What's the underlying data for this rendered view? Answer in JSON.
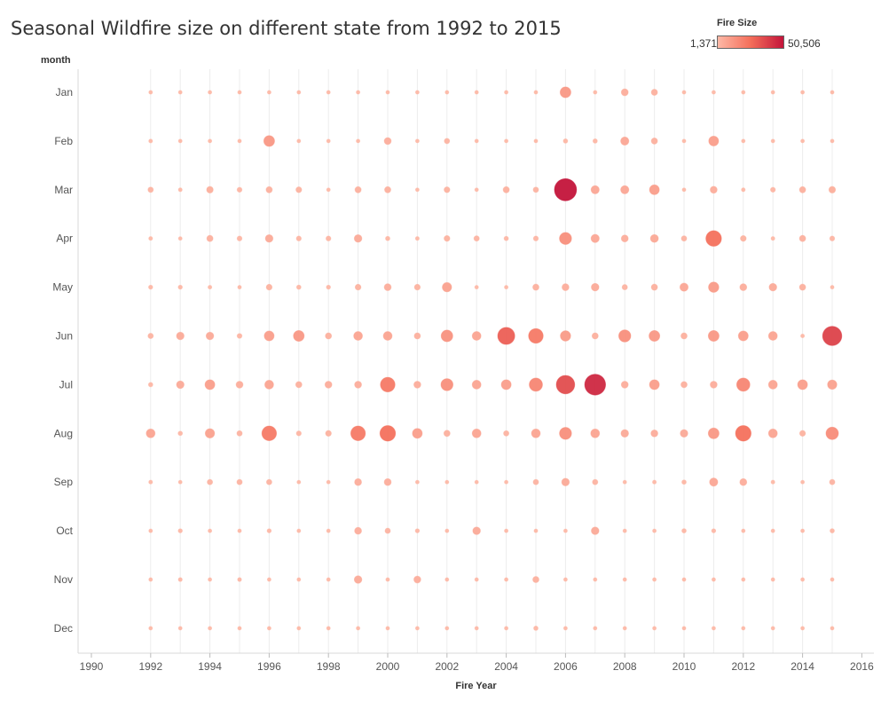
{
  "chart_data": {
    "type": "scatter",
    "title": "Seasonal Wildfire size on different state from 1992 to 2015",
    "xlabel": "Fire Year",
    "ylabel": "month",
    "legend": {
      "title": "Fire Size",
      "min_label": "1,371",
      "max_label": "50,506",
      "min": 1371,
      "max": 50506,
      "placement": "top-right"
    },
    "xlim": [
      1989.6,
      2017
    ],
    "x_ticks": [
      1990,
      1992,
      1994,
      1996,
      1998,
      2000,
      2002,
      2004,
      2006,
      2008,
      2010,
      2012,
      2014,
      2016
    ],
    "years": [
      1992,
      1993,
      1994,
      1995,
      1996,
      1997,
      1998,
      1999,
      2000,
      2001,
      2002,
      2003,
      2004,
      2005,
      2006,
      2007,
      2008,
      2009,
      2010,
      2011,
      2012,
      2013,
      2014,
      2015
    ],
    "months": [
      "Jan",
      "Feb",
      "Mar",
      "Apr",
      "May",
      "Jun",
      "Jul",
      "Aug",
      "Sep",
      "Oct",
      "Nov",
      "Dec"
    ],
    "grid": "vertical",
    "series": [
      {
        "month": "Jan",
        "values": [
          1400,
          1400,
          1400,
          1400,
          1400,
          1400,
          1400,
          1400,
          1400,
          1400,
          1400,
          1400,
          1400,
          1400,
          12000,
          1400,
          5000,
          4000,
          1400,
          1400,
          1400,
          1400,
          1400,
          1400
        ]
      },
      {
        "month": "Feb",
        "values": [
          1500,
          1400,
          1400,
          1400,
          12000,
          1400,
          1400,
          1400,
          5000,
          1400,
          3000,
          1400,
          1400,
          1400,
          2000,
          2000,
          7000,
          4000,
          1400,
          10000,
          1400,
          1400,
          1400,
          1400
        ]
      },
      {
        "month": "Mar",
        "values": [
          3000,
          1500,
          4500,
          2500,
          4000,
          3500,
          1400,
          4000,
          4000,
          1400,
          3500,
          1400,
          4000,
          3000,
          50506,
          7000,
          7000,
          10000,
          1400,
          5000,
          1500,
          2500,
          4000,
          4500
        ]
      },
      {
        "month": "Apr",
        "values": [
          1500,
          1400,
          4000,
          2500,
          6000,
          2500,
          2500,
          6000,
          2000,
          1500,
          3500,
          3000,
          2000,
          2500,
          15000,
          7000,
          5000,
          6500,
          3000,
          25000,
          3500,
          1500,
          4000,
          2500
        ]
      },
      {
        "month": "May",
        "values": [
          1800,
          1800,
          1500,
          1400,
          3500,
          2000,
          1800,
          3500,
          5000,
          3500,
          9000,
          1400,
          1400,
          4000,
          5000,
          6000,
          3000,
          4000,
          7000,
          11000,
          5000,
          6000,
          4000,
          1400
        ]
      },
      {
        "month": "Jun",
        "values": [
          3000,
          6000,
          6000,
          2500,
          10000,
          12000,
          4000,
          8000,
          8000,
          4000,
          14000,
          8000,
          30000,
          22000,
          11000,
          4000,
          15000,
          12000,
          4000,
          12000,
          10000,
          8000,
          1500,
          38000
        ]
      },
      {
        "month": "Jul",
        "values": [
          2000,
          6000,
          10000,
          5000,
          8000,
          4000,
          5000,
          5000,
          22000,
          5000,
          15000,
          8000,
          10000,
          18000,
          35000,
          45000,
          5000,
          10000,
          4000,
          5000,
          18000,
          8000,
          10000,
          9000
        ]
      },
      {
        "month": "Aug",
        "values": [
          8000,
          2000,
          9000,
          3000,
          22000,
          2500,
          3500,
          22000,
          25000,
          10000,
          4000,
          8000,
          3000,
          8000,
          15000,
          8000,
          6000,
          5000,
          6000,
          12000,
          25000,
          8000,
          3500,
          16000
        ]
      },
      {
        "month": "Sep",
        "values": [
          1500,
          1400,
          3000,
          3000,
          3000,
          1400,
          1400,
          5000,
          5000,
          1400,
          1400,
          1400,
          1400,
          3000,
          6000,
          3000,
          1400,
          1500,
          2000,
          7000,
          5000,
          1500,
          1400,
          3000
        ]
      },
      {
        "month": "Oct",
        "values": [
          1400,
          1800,
          1400,
          1400,
          1800,
          1400,
          1400,
          5000,
          3000,
          1800,
          1400,
          6000,
          1400,
          1400,
          1400,
          6000,
          1400,
          1400,
          2000,
          1800,
          1400,
          1400,
          1400,
          2000
        ]
      },
      {
        "month": "Nov",
        "values": [
          1400,
          1600,
          1400,
          1600,
          1400,
          1400,
          1400,
          6000,
          1500,
          5000,
          1400,
          1400,
          1400,
          4000,
          1400,
          1400,
          1400,
          1400,
          1400,
          1400,
          1400,
          1400,
          1400,
          1400
        ]
      },
      {
        "month": "Dec",
        "values": [
          1400,
          1400,
          1400,
          1400,
          1400,
          1400,
          1400,
          1400,
          1400,
          1400,
          1400,
          1400,
          1400,
          2000,
          1400,
          1400,
          1400,
          1400,
          1400,
          1400,
          1400,
          1400,
          1400,
          1400
        ]
      }
    ],
    "colors": {
      "low": "#fdb8a6",
      "mid": "#f46e5a",
      "high": "#c3143a",
      "grid": "#ececec"
    }
  }
}
